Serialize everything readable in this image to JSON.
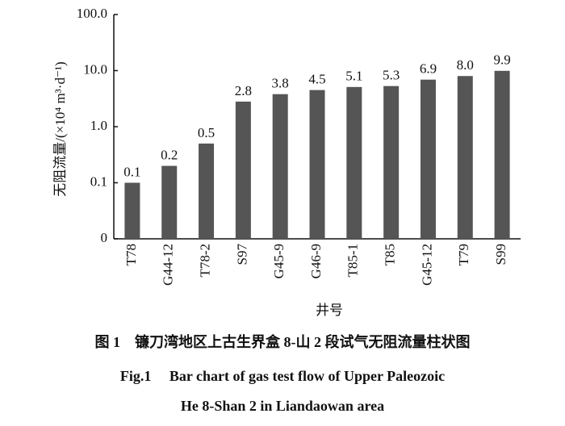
{
  "chart_data": {
    "type": "bar",
    "x_label": "井号",
    "y_label": "无阻流量/(×10⁴ m³·d⁻¹)",
    "caption_cn": "图 1　镰刀湾地区上古生界盒 8-山 2 段试气无阻流量柱状图",
    "caption_en": [
      "Fig.1　 Bar chart of gas test flow of Upper Paleozoic",
      "He 8-Shan 2 in Liandaowan area"
    ],
    "categories": [
      "T78",
      "G44-12",
      "T78-2",
      "S97",
      "G45-9",
      "G46-9",
      "T85-1",
      "T85",
      "G45-12",
      "T79",
      "S99"
    ],
    "values": [
      0.1,
      0.2,
      0.5,
      2.8,
      3.8,
      4.5,
      5.1,
      5.3,
      6.9,
      8.0,
      9.9
    ],
    "value_labels": [
      "0.1",
      "0.2",
      "0.5",
      "2.8",
      "3.8",
      "4.5",
      "5.1",
      "5.3",
      "6.9",
      "8.0",
      "9.9"
    ],
    "color": "#555555",
    "log_scale": true,
    "ylim": [
      0.01,
      100
    ],
    "yticks": [
      {
        "value": 0.01,
        "label": "0"
      },
      0.1,
      {
        "value": 1,
        "label": "1.0"
      },
      {
        "value": 10,
        "label": "10.0"
      },
      {
        "value": 100,
        "label": "100.0"
      }
    ]
  }
}
